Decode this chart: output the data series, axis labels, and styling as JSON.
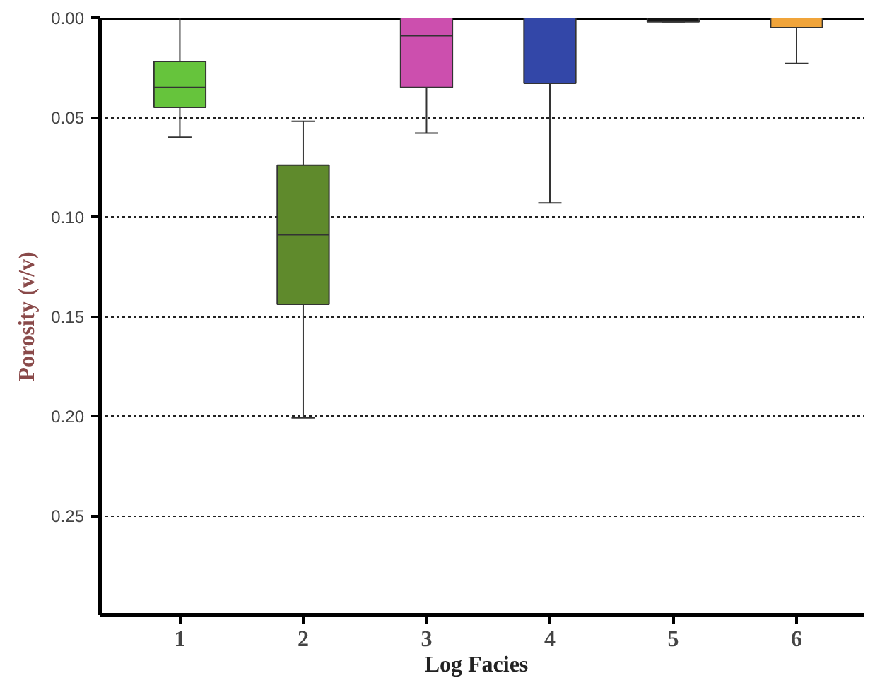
{
  "chart_data": {
    "type": "box",
    "xlabel": "Log   Facies",
    "ylabel": "Porosity (v/v)",
    "categories": [
      "1",
      "2",
      "3",
      "4",
      "5",
      "6"
    ],
    "colors": [
      "#66c43c",
      "#5f8a2c",
      "#cc4fae",
      "#3347a8",
      "#111111",
      "#f0a43a"
    ],
    "boxes": [
      {
        "low": 0.0,
        "q1": 0.022,
        "median": 0.035,
        "q3": 0.045,
        "high": 0.06
      },
      {
        "low": 0.052,
        "q1": 0.074,
        "median": 0.109,
        "q3": 0.144,
        "high": 0.201
      },
      {
        "low": 0.0,
        "q1": 0.0,
        "median": 0.009,
        "q3": 0.035,
        "high": 0.058
      },
      {
        "low": 0.0,
        "q1": 0.0,
        "median": 0.0,
        "q3": 0.033,
        "high": 0.093
      },
      {
        "low": 0.0,
        "q1": 0.0,
        "median": 0.0,
        "q3": 0.002,
        "high": 0.002
      },
      {
        "low": 0.0,
        "q1": 0.0,
        "median": 0.0,
        "q3": 0.005,
        "high": 0.023
      }
    ],
    "ylim": [
      0.3,
      0.0
    ],
    "yticks": [
      {
        "value": 0,
        "label": "0.00"
      },
      {
        "value": 0.05,
        "label": "0.05"
      },
      {
        "value": 0.1,
        "label": "0.10"
      },
      {
        "value": 0.15,
        "label": "0.15"
      },
      {
        "value": 0.2,
        "label": "0.20"
      },
      {
        "value": 0.25,
        "label": "0.25"
      }
    ],
    "grid": "y"
  }
}
